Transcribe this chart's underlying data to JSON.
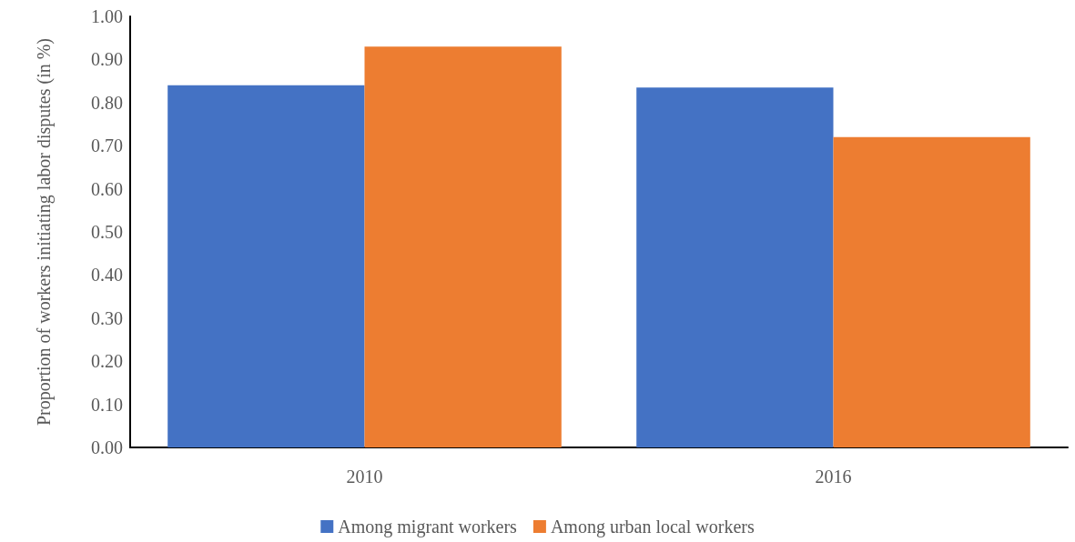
{
  "chart_data": {
    "type": "bar",
    "ylabel": "Proportion of workers initiating labor disputes (in %)",
    "categories": [
      "2010",
      "2016"
    ],
    "series": [
      {
        "name": "Among migrant workers",
        "color": "#4472c4",
        "values": [
          0.84,
          0.835
        ]
      },
      {
        "name": "Among urban local workers",
        "color": "#ed7d31",
        "values": [
          0.93,
          0.72
        ]
      }
    ],
    "ylim": [
      0,
      1
    ],
    "yticks": [
      {
        "value": 0,
        "label": "0.00"
      },
      {
        "value": 0.1,
        "label": "0.10"
      },
      {
        "value": 0.2,
        "label": "0.20"
      },
      {
        "value": 0.3,
        "label": "0.30"
      },
      {
        "value": 0.4,
        "label": "0.40"
      },
      {
        "value": 0.5,
        "label": "0.50"
      },
      {
        "value": 0.6,
        "label": "0.60"
      },
      {
        "value": 0.7,
        "label": "0.70"
      },
      {
        "value": 0.8,
        "label": "0.80"
      },
      {
        "value": 0.9,
        "label": "0.90"
      },
      {
        "value": 1,
        "label": "1.00"
      }
    ],
    "grid": false,
    "legend": "bottom"
  }
}
